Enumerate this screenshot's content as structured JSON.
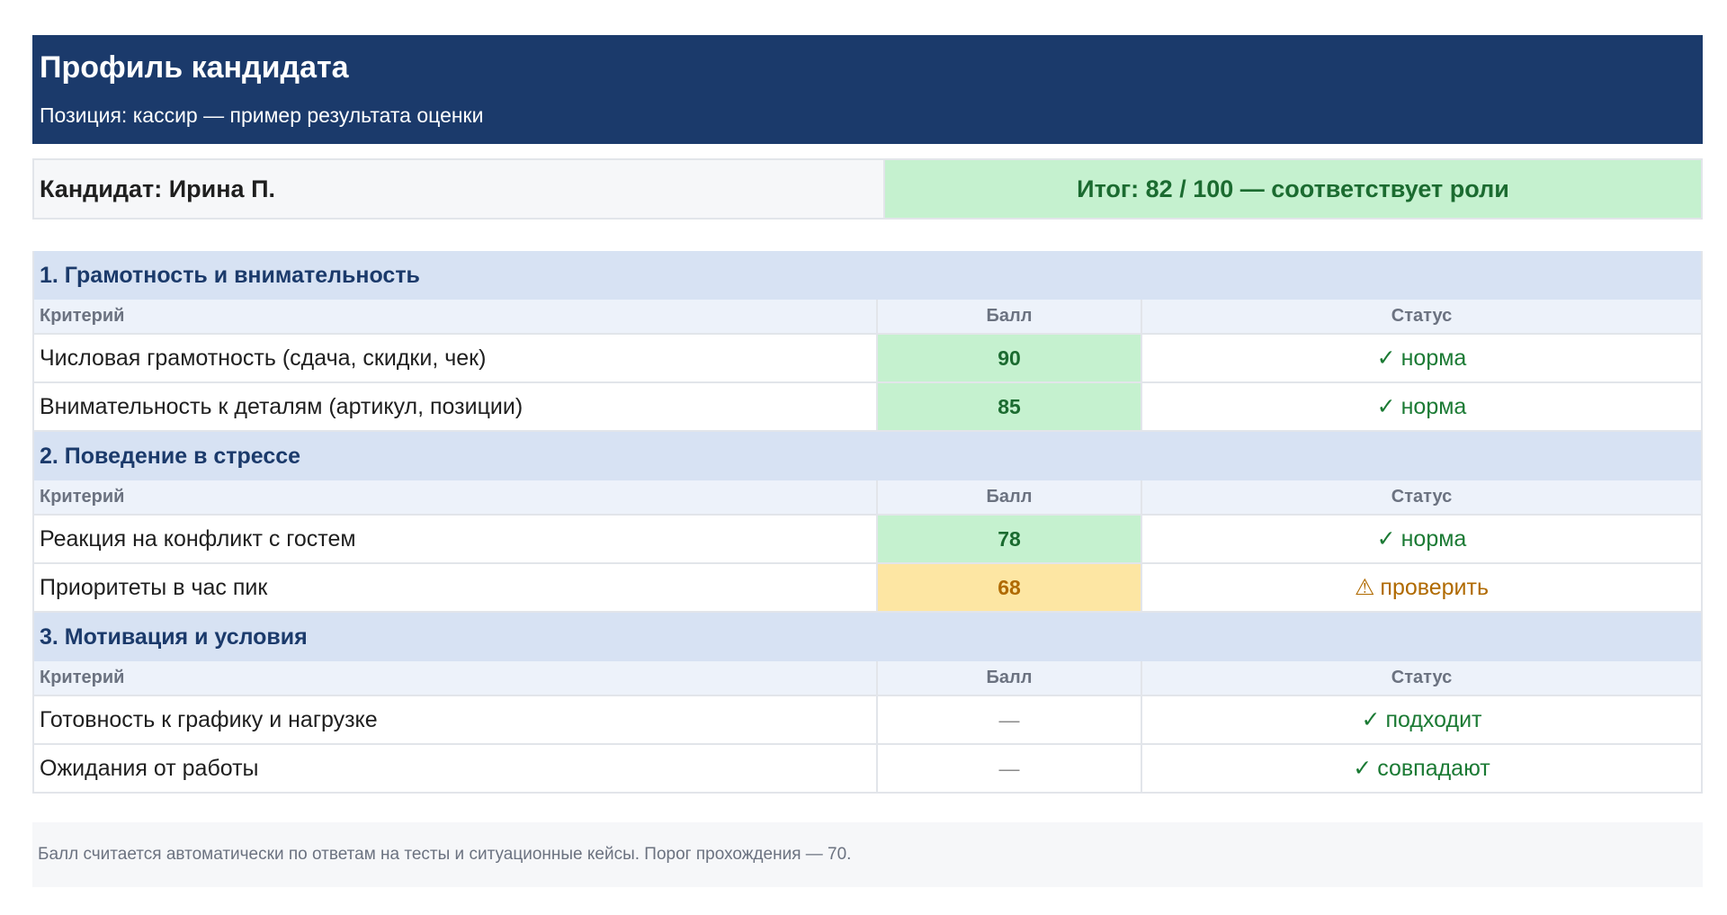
{
  "header": {
    "title": "Профиль кандидата",
    "subtitle": "Позиция: кассир — пример результата оценки"
  },
  "candidate": {
    "name_line": "Кандидат: Ирина П.",
    "total_line": "Итог: 82 / 100 — соответствует роли"
  },
  "columns": {
    "criterion": "Критерий",
    "score": "Балл",
    "status": "Статус"
  },
  "sections": [
    {
      "title": "1. Грамотность и внимательность",
      "rows": [
        {
          "criterion": "Числовая грамотность (сдача, скидки, чек)",
          "score": "90",
          "status_mark": "✓",
          "status": "норма"
        },
        {
          "criterion": "Внимательность к деталям (артикул, позиции)",
          "score": "85",
          "status_mark": "✓",
          "status": "норма"
        }
      ]
    },
    {
      "title": "2. Поведение в стрессе",
      "rows": [
        {
          "criterion": "Реакция на конфликт с гостем",
          "score": "78",
          "status_mark": "✓",
          "status": "норма"
        },
        {
          "criterion": "Приоритеты в час пик",
          "score": "68",
          "status_mark": "⚠",
          "status": "проверить"
        }
      ]
    },
    {
      "title": "3. Мотивация и условия",
      "rows": [
        {
          "criterion": "Готовность к графику и нагрузке",
          "score": "—",
          "status_mark": "✓",
          "status": "подходит"
        },
        {
          "criterion": "Ожидания от работы",
          "score": "—",
          "status_mark": "✓",
          "status": "совпадают"
        }
      ]
    }
  ],
  "footer": {
    "note": "Балл считается автоматически по ответам на тесты и ситуационные кейсы. Порог прохождения — 70."
  },
  "colors": {
    "header_bg": "#1b3a6b",
    "good_bg": "#c5f1cf",
    "good_text": "#1b6b30",
    "warn_bg": "#fde6a3",
    "warn_text": "#b06a00"
  }
}
